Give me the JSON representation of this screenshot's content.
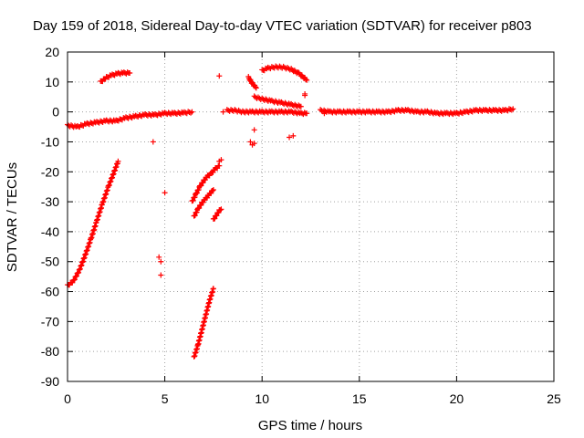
{
  "chart_data": {
    "type": "scatter",
    "title": "Day 159 of 2018, Sidereal Day-to-day VTEC variation (SDTVAR) for receiver p803",
    "xlabel": "GPS time / hours",
    "ylabel": "SDTVAR / TECUs",
    "xlim": [
      0,
      25
    ],
    "ylim": [
      -90,
      20
    ],
    "grid": true,
    "x_ticks": [
      0,
      5,
      10,
      15,
      20,
      25
    ],
    "y_ticks": [
      -90,
      -80,
      -70,
      -60,
      -50,
      -40,
      -30,
      -20,
      -10,
      0,
      10,
      20
    ],
    "marker": "+",
    "color": "#ff0000",
    "segments": [
      {
        "name": "baseline-early",
        "points": [
          [
            0.0,
            -4.5
          ],
          [
            0.5,
            -5.0
          ],
          [
            1.0,
            -4.0
          ],
          [
            1.5,
            -3.5
          ],
          [
            2.0,
            -3.0
          ],
          [
            2.5,
            -3.0
          ],
          [
            3.0,
            -2.0
          ],
          [
            3.5,
            -1.5
          ],
          [
            4.0,
            -1.0
          ],
          [
            4.5,
            -1.0
          ],
          [
            5.0,
            -0.5
          ],
          [
            5.5,
            -0.5
          ],
          [
            6.0,
            -0.3
          ],
          [
            6.4,
            0.0
          ]
        ]
      },
      {
        "name": "baseline-mid",
        "points": [
          [
            8.2,
            0.5
          ],
          [
            8.6,
            0.5
          ],
          [
            9.0,
            0.0
          ],
          [
            9.5,
            0.0
          ],
          [
            10.0,
            0.0
          ],
          [
            10.5,
            0.0
          ],
          [
            11.0,
            0.0
          ],
          [
            11.5,
            0.0
          ],
          [
            12.0,
            -0.5
          ],
          [
            12.3,
            -0.5
          ]
        ]
      },
      {
        "name": "baseline-late",
        "points": [
          [
            13.0,
            0.5
          ],
          [
            13.5,
            0.0
          ],
          [
            14.0,
            0.0
          ],
          [
            14.5,
            0.0
          ],
          [
            15.0,
            0.0
          ],
          [
            15.5,
            0.0
          ],
          [
            16.0,
            0.0
          ],
          [
            16.5,
            0.0
          ],
          [
            17.0,
            0.5
          ],
          [
            17.5,
            0.5
          ],
          [
            18.0,
            0.0
          ],
          [
            18.5,
            0.0
          ],
          [
            19.0,
            -0.5
          ],
          [
            19.5,
            -0.5
          ],
          [
            20.0,
            -0.5
          ],
          [
            20.5,
            0.0
          ],
          [
            21.0,
            0.5
          ],
          [
            21.5,
            0.5
          ],
          [
            22.0,
            0.5
          ],
          [
            22.5,
            0.5
          ],
          [
            22.9,
            1.0
          ]
        ]
      },
      {
        "name": "upper-arc-early",
        "points": [
          [
            1.7,
            10.0
          ],
          [
            2.0,
            11.5
          ],
          [
            2.3,
            12.3
          ],
          [
            2.6,
            12.8
          ],
          [
            2.9,
            13.0
          ],
          [
            3.2,
            13.0
          ]
        ]
      },
      {
        "name": "upper-arc-mid",
        "points": [
          [
            10.0,
            13.8
          ],
          [
            10.3,
            14.6
          ],
          [
            10.7,
            15.0
          ],
          [
            11.1,
            14.9
          ],
          [
            11.5,
            14.2
          ],
          [
            11.9,
            12.8
          ],
          [
            12.3,
            10.6
          ]
        ]
      },
      {
        "name": "descending-arc-mid",
        "points": [
          [
            9.6,
            5.0
          ],
          [
            10.0,
            4.3
          ],
          [
            10.5,
            3.6
          ],
          [
            11.0,
            3.0
          ],
          [
            11.5,
            2.4
          ],
          [
            12.0,
            1.8
          ]
        ]
      },
      {
        "name": "small-arc-mid",
        "points": [
          [
            9.3,
            11.5
          ],
          [
            9.5,
            9.5
          ],
          [
            9.7,
            8.0
          ]
        ]
      },
      {
        "name": "rising-arc-early",
        "points": [
          [
            0.0,
            -58.0
          ],
          [
            0.3,
            -56.5
          ],
          [
            0.6,
            -53.0
          ],
          [
            0.9,
            -48.0
          ],
          [
            1.2,
            -42.5
          ],
          [
            1.5,
            -36.5
          ],
          [
            1.8,
            -30.5
          ],
          [
            2.1,
            -25.0
          ],
          [
            2.4,
            -20.0
          ],
          [
            2.6,
            -16.5
          ]
        ]
      },
      {
        "name": "steep-arc-a",
        "points": [
          [
            6.5,
            -82.0
          ],
          [
            6.7,
            -78.0
          ],
          [
            6.9,
            -73.0
          ],
          [
            7.1,
            -68.0
          ],
          [
            7.3,
            -63.0
          ],
          [
            7.5,
            -59.0
          ]
        ]
      },
      {
        "name": "steep-arc-b",
        "points": [
          [
            6.4,
            -30.0
          ],
          [
            6.6,
            -27.5
          ],
          [
            6.8,
            -25.0
          ],
          [
            7.0,
            -23.0
          ],
          [
            7.2,
            -21.5
          ],
          [
            7.4,
            -20.5
          ],
          [
            7.6,
            -19.0
          ],
          [
            7.8,
            -18.0
          ]
        ]
      },
      {
        "name": "steep-arc-c",
        "points": [
          [
            6.5,
            -35.0
          ],
          [
            6.7,
            -32.5
          ],
          [
            6.9,
            -30.5
          ],
          [
            7.1,
            -29.0
          ],
          [
            7.3,
            -27.5
          ],
          [
            7.5,
            -26.0
          ]
        ]
      },
      {
        "name": "steep-arc-d",
        "points": [
          [
            7.5,
            -36.0
          ],
          [
            7.6,
            -35.0
          ],
          [
            7.7,
            -34.0
          ],
          [
            7.8,
            -33.0
          ],
          [
            7.9,
            -32.5
          ]
        ]
      },
      {
        "name": "isolated",
        "points": [
          [
            4.4,
            -10.0
          ],
          [
            4.7,
            -48.5
          ],
          [
            4.8,
            -50.0
          ],
          [
            4.8,
            -54.5
          ],
          [
            5.0,
            -27.0
          ],
          [
            7.8,
            12.0
          ],
          [
            7.8,
            -16.5
          ],
          [
            7.9,
            -16.0
          ],
          [
            8.0,
            0.0
          ],
          [
            9.5,
            -11.0
          ],
          [
            9.4,
            -10.0
          ],
          [
            9.6,
            -6.0
          ],
          [
            9.6,
            -10.5
          ],
          [
            11.4,
            -8.5
          ],
          [
            11.6,
            -8.0
          ],
          [
            12.2,
            6.0
          ],
          [
            12.2,
            5.5
          ],
          [
            13.2,
            -0.5
          ]
        ]
      }
    ]
  }
}
